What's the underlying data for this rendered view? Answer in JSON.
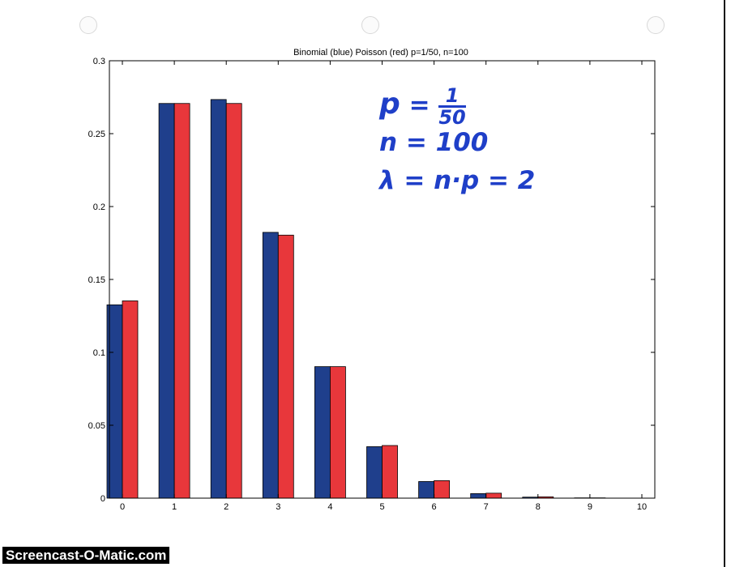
{
  "chart_data": {
    "type": "bar",
    "title": "Binomial (blue) Poisson (red) p=1/50, n=100",
    "xlabel": "",
    "ylabel": "",
    "categories": [
      "0",
      "1",
      "2",
      "3",
      "4",
      "5",
      "6",
      "7",
      "8",
      "9",
      "10"
    ],
    "series": [
      {
        "values": [
          0.1326,
          0.2707,
          0.2734,
          0.1823,
          0.0902,
          0.0353,
          0.0114,
          0.0031,
          0.0007,
          0.0002,
          0.0
        ],
        "color": "#1f3f8c"
      },
      {
        "values": [
          0.1353,
          0.2707,
          0.2707,
          0.1804,
          0.0902,
          0.0361,
          0.012,
          0.0034,
          0.0009,
          0.0002,
          0.0
        ],
        "color": "#e8373b"
      }
    ],
    "ylim": [
      0,
      0.3
    ],
    "yticks": [
      "0",
      "0.05",
      "0.1",
      "0.15",
      "0.2",
      "0.25",
      "0.3"
    ],
    "grid": false,
    "legend": "none"
  },
  "annotations": {
    "line1": "p = 1/50",
    "line2": "n = 100",
    "line3": "λ = n·p = 2"
  },
  "watermark": "Screencast-O-Matic.com"
}
